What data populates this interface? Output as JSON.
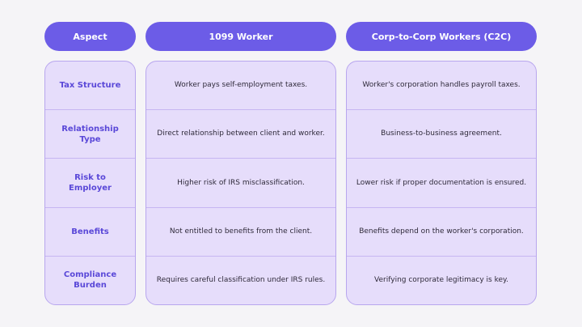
{
  "table": {
    "header": [
      "Aspect",
      "1099 Worker",
      "Corp-to-Corp Workers (C2C)"
    ],
    "rows": [
      [
        "Tax Structure",
        "Worker pays self-employment taxes.",
        "Worker's corporation handles payroll taxes."
      ],
      [
        "Relationship Type",
        "Direct relationship between client and worker.",
        "Business-to-business agreement."
      ],
      [
        "Risk to Employer",
        "Higher risk of IRS misclassification.",
        "Lower risk if proper documentation is ensured."
      ],
      [
        "Benefits",
        "Not entitled to benefits from the client.",
        "Benefits depend on the worker's corporation."
      ],
      [
        "Compliance Burden",
        "Requires careful classification under IRS rules.",
        "Verifying corporate legitimacy is key."
      ]
    ]
  }
}
